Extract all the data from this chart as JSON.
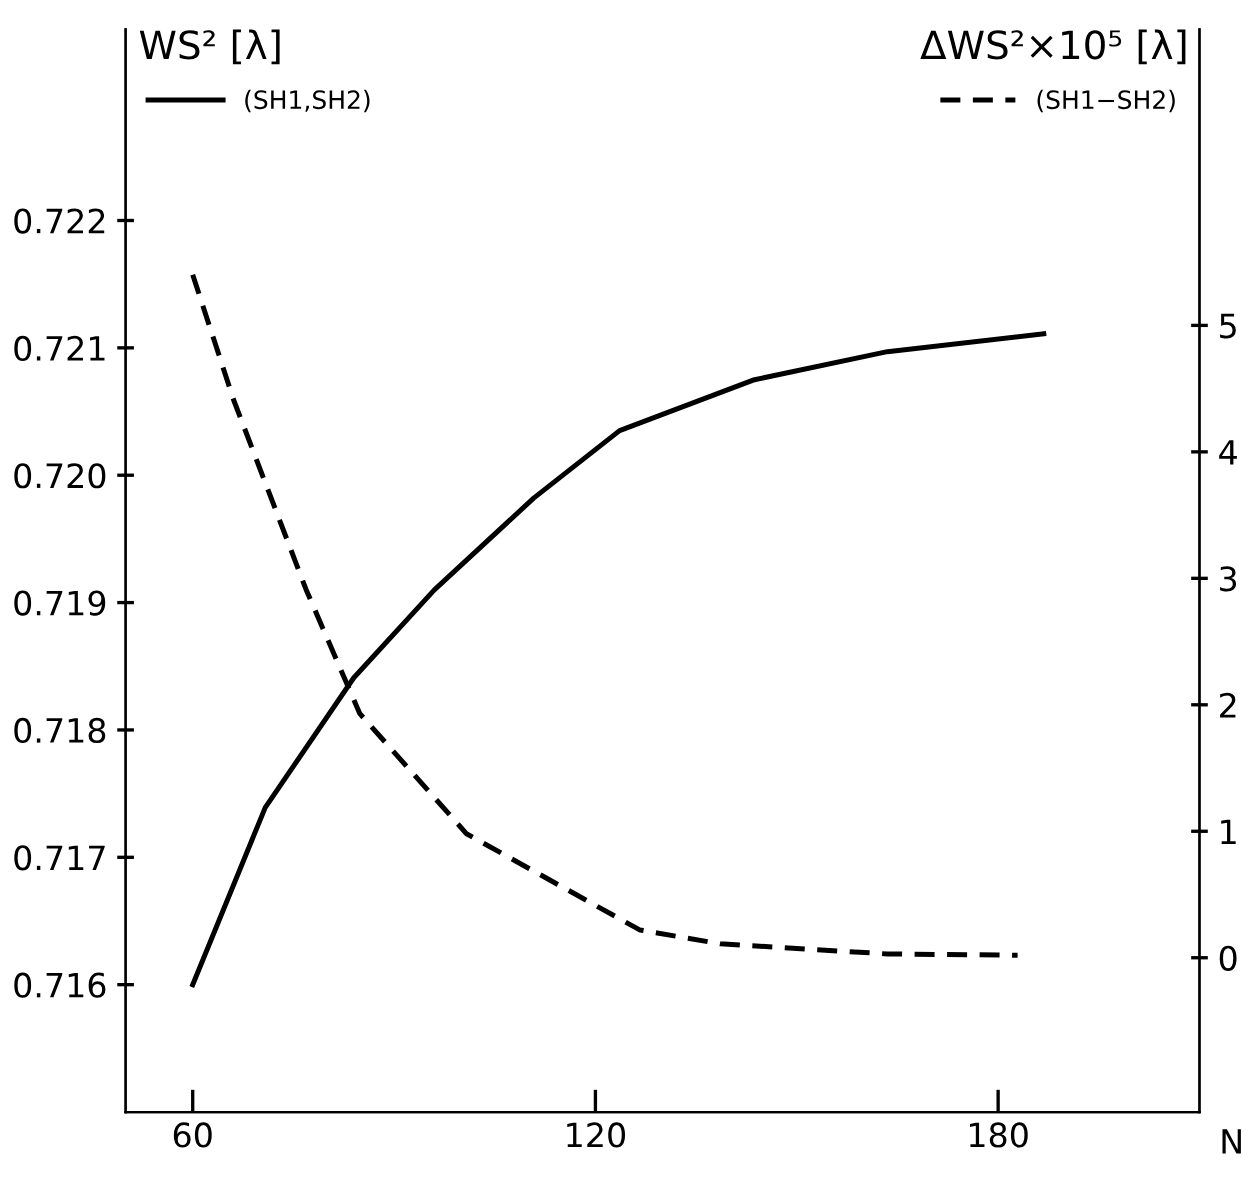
{
  "chart_data": {
    "type": "line",
    "ylabel": "WS² [λ]",
    "y2label": "ΔWS²×10⁵ [λ]",
    "xlabel": "N",
    "xlim": [
      50,
      210
    ],
    "xticks": [
      60,
      120,
      180
    ],
    "ylim": [
      0.715,
      0.7235
    ],
    "yticks": [
      0.716,
      0.717,
      0.718,
      0.719,
      {
        "value": 0.72,
        "label": "0.720"
      },
      0.721,
      0.722
    ],
    "y2lim": [
      -1.22,
      7.34
    ],
    "y2ticks": [
      0,
      1,
      2,
      3,
      4,
      5
    ],
    "legend": "top",
    "grid": false,
    "series": [
      {
        "name": "(SH1,SH2)",
        "color": "#000000",
        "line_style": "solid",
        "x": [
          60,
          70.8,
          84,
          96,
          110.8,
          123.6,
          143.7,
          163.5,
          186.8
        ],
        "values": [
          0.716,
          0.71739,
          0.71841,
          0.7191,
          0.71982,
          0.72035,
          0.72075,
          0.72097,
          0.72111
        ]
      },
      {
        "name": "(SH1−SH2)",
        "color": "#000000",
        "line_style": "dashed",
        "axis": "y2",
        "x": [
          60,
          66.1,
          76.9,
          84.9,
          100.8,
          126.6,
          138.6,
          163.5,
          182.9
        ],
        "values": [
          5.4,
          4.41,
          2.91,
          1.93,
          0.98,
          0.22,
          0.11,
          0.03,
          0.02
        ]
      }
    ]
  }
}
